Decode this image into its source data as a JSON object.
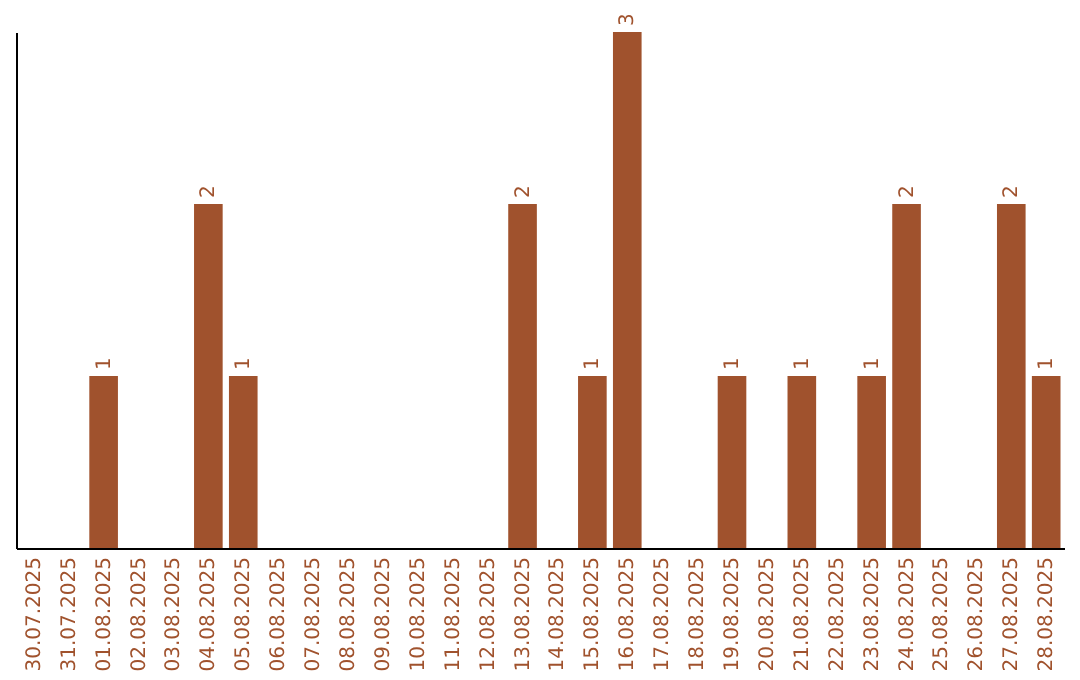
{
  "chart_data": {
    "type": "bar",
    "categories": [
      "30.07.2025",
      "31.07.2025",
      "01.08.2025",
      "02.08.2025",
      "03.08.2025",
      "04.08.2025",
      "05.08.2025",
      "06.08.2025",
      "07.08.2025",
      "08.08.2025",
      "09.08.2025",
      "10.08.2025",
      "11.08.2025",
      "12.08.2025",
      "13.08.2025",
      "14.08.2025",
      "15.08.2025",
      "16.08.2025",
      "17.08.2025",
      "18.08.2025",
      "19.08.2025",
      "20.08.2025",
      "21.08.2025",
      "22.08.2025",
      "23.08.2025",
      "24.08.2025",
      "25.08.2025",
      "26.08.2025",
      "27.08.2025",
      "28.08.2025"
    ],
    "values": [
      0,
      0,
      1,
      0,
      0,
      2,
      1,
      0,
      0,
      0,
      0,
      0,
      0,
      0,
      2,
      0,
      1,
      3,
      0,
      0,
      1,
      0,
      1,
      0,
      1,
      2,
      0,
      0,
      2,
      1
    ],
    "value_labels": [
      null,
      null,
      "1",
      null,
      null,
      "2",
      "1",
      null,
      null,
      null,
      null,
      null,
      null,
      null,
      "2",
      null,
      "1",
      "3",
      null,
      null,
      "1",
      null,
      "1",
      null,
      "1",
      "2",
      null,
      null,
      "2",
      "1"
    ],
    "color": "#a0522d",
    "tick_labels": "x",
    "grid": false
  }
}
